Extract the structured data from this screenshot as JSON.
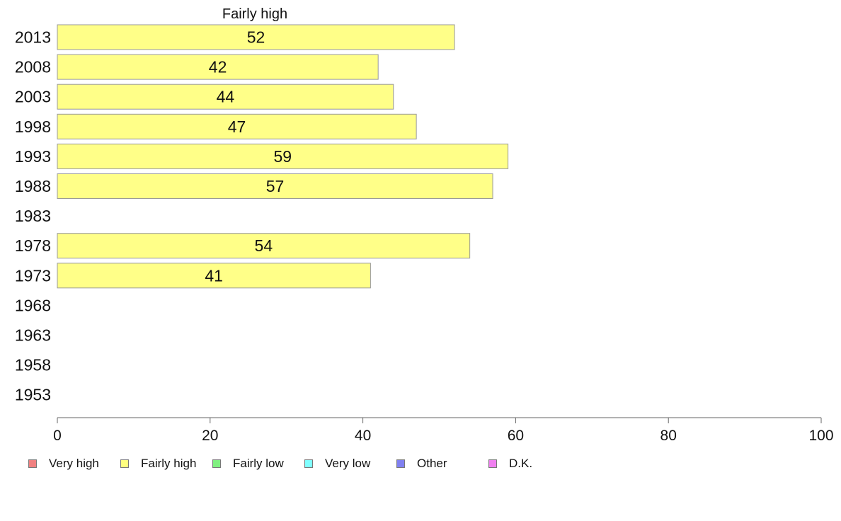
{
  "chart_data": {
    "type": "bar",
    "orientation": "horizontal",
    "title": "Fairly high",
    "categories": [
      "2013",
      "2008",
      "2003",
      "1998",
      "1993",
      "1988",
      "1983",
      "1978",
      "1973",
      "1968",
      "1963",
      "1958",
      "1953"
    ],
    "series": [
      {
        "name": "Fairly high",
        "values": [
          52,
          42,
          44,
          47,
          59,
          57,
          null,
          54,
          41,
          null,
          null,
          null,
          null
        ]
      }
    ],
    "data_labels": [
      "52",
      "42",
      "44",
      "47",
      "59",
      "57",
      "",
      "54",
      "41",
      "",
      "",
      "",
      ""
    ],
    "xlim": [
      0,
      100
    ],
    "x_ticks": [
      "0",
      "20",
      "40",
      "60",
      "80",
      "100"
    ],
    "grid": false,
    "legend_placement": "bottom",
    "bar_color": "#ffff88",
    "bar_border_color": "#999999"
  },
  "legend": {
    "items": [
      {
        "label": "Very high",
        "color": "#f08080"
      },
      {
        "label": "Fairly high",
        "color": "#ffff80"
      },
      {
        "label": "Fairly low",
        "color": "#80f080"
      },
      {
        "label": "Very low",
        "color": "#80ffff"
      },
      {
        "label": "Other",
        "color": "#8080f0"
      },
      {
        "label": "D.K.",
        "color": "#f080f0"
      }
    ]
  }
}
